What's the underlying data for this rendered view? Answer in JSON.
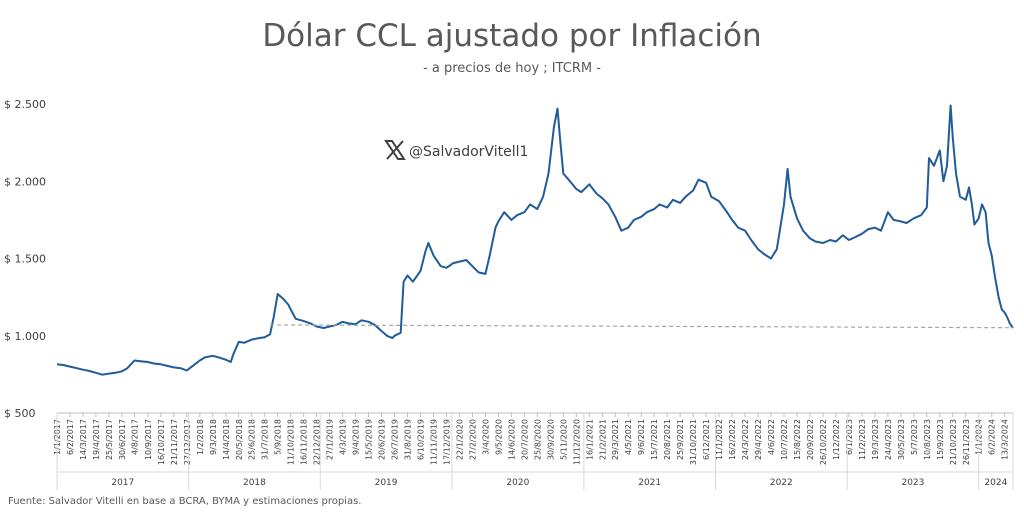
{
  "chart_data": {
    "type": "line",
    "title": "Dólar CCL ajustado por Inflación",
    "subtitle": "- a precios de hoy ; ITCRM -",
    "ylim": [
      500,
      2500
    ],
    "y_ticks": [
      500,
      1000,
      1500,
      2000,
      2500
    ],
    "y_tick_labels": [
      "$ 500",
      "$ 1.000",
      "$ 1.500",
      "$ 2.000",
      "$ 2.500"
    ],
    "grid": false,
    "x_tick_labels": [
      "1/1/2017",
      "6/2/2017",
      "14/3/2017",
      "19/4/2017",
      "25/5/2017",
      "30/6/2017",
      "4/8/2017",
      "10/9/2017",
      "16/10/2017",
      "21/11/2017",
      "27/12/2017",
      "1/2/2018",
      "9/3/2018",
      "14/4/2018",
      "20/5/2018",
      "25/6/2018",
      "31/7/2018",
      "5/9/2018",
      "11/10/2018",
      "16/11/2018",
      "22/12/2018",
      "27/1/2019",
      "4/3/2019",
      "9/4/2019",
      "15/5/2019",
      "20/6/2019",
      "26/7/2019",
      "31/8/2019",
      "6/10/2019",
      "11/11/2019",
      "17/12/2019",
      "22/1/2020",
      "27/2/2020",
      "3/4/2020",
      "9/5/2020",
      "14/6/2020",
      "20/7/2020",
      "25/8/2020",
      "30/9/2020",
      "5/11/2020",
      "11/12/2020",
      "16/1/2021",
      "21/2/2021",
      "29/3/2021",
      "4/5/2021",
      "9/6/2021",
      "15/7/2021",
      "20/8/2021",
      "25/9/2021",
      "31/10/2021",
      "6/12/2021",
      "11/1/2022",
      "16/2/2022",
      "24/3/2022",
      "29/4/2022",
      "4/6/2022",
      "10/7/2022",
      "15/8/2022",
      "20/9/2022",
      "26/10/2022",
      "1/12/2022",
      "6/1/2023",
      "11/2/2023",
      "19/3/2023",
      "24/4/2023",
      "30/5/2023",
      "5/7/2023",
      "10/8/2023",
      "15/9/2023",
      "21/10/2023",
      "26/11/2023",
      "1/1/2024",
      "6/2/2024",
      "13/3/2024"
    ],
    "year_groups": [
      {
        "label": "2017",
        "start": "2017-01-01",
        "end": "2017-12-31"
      },
      {
        "label": "2018",
        "start": "2018-01-01",
        "end": "2018-12-31"
      },
      {
        "label": "2019",
        "start": "2019-01-01",
        "end": "2019-12-31"
      },
      {
        "label": "2020",
        "start": "2020-01-01",
        "end": "2020-12-31"
      },
      {
        "label": "2021",
        "start": "2021-01-01",
        "end": "2021-12-31"
      },
      {
        "label": "2022",
        "start": "2022-01-01",
        "end": "2022-12-31"
      },
      {
        "label": "2023",
        "start": "2023-01-01",
        "end": "2023-12-31"
      },
      {
        "label": "2024",
        "start": "2024-01-01",
        "end": "2024-04-05"
      }
    ],
    "series": [
      {
        "color": "#1f5c99",
        "points": [
          [
            "2017-01-01",
            815
          ],
          [
            "2017-01-20",
            810
          ],
          [
            "2017-02-06",
            800
          ],
          [
            "2017-02-25",
            790
          ],
          [
            "2017-03-14",
            780
          ],
          [
            "2017-04-01",
            772
          ],
          [
            "2017-04-19",
            760
          ],
          [
            "2017-05-07",
            748
          ],
          [
            "2017-05-25",
            755
          ],
          [
            "2017-06-12",
            760
          ],
          [
            "2017-06-30",
            770
          ],
          [
            "2017-07-15",
            790
          ],
          [
            "2017-08-04",
            840
          ],
          [
            "2017-08-20",
            835
          ],
          [
            "2017-09-10",
            830
          ],
          [
            "2017-09-28",
            820
          ],
          [
            "2017-10-16",
            815
          ],
          [
            "2017-11-03",
            805
          ],
          [
            "2017-11-21",
            795
          ],
          [
            "2017-12-10",
            790
          ],
          [
            "2017-12-27",
            775
          ],
          [
            "2018-01-10",
            800
          ],
          [
            "2018-02-01",
            840
          ],
          [
            "2018-02-15",
            860
          ],
          [
            "2018-03-09",
            870
          ],
          [
            "2018-03-25",
            860
          ],
          [
            "2018-04-14",
            845
          ],
          [
            "2018-04-28",
            830
          ],
          [
            "2018-05-05",
            880
          ],
          [
            "2018-05-20",
            960
          ],
          [
            "2018-06-05",
            955
          ],
          [
            "2018-06-25",
            975
          ],
          [
            "2018-07-15",
            985
          ],
          [
            "2018-07-31",
            990
          ],
          [
            "2018-08-15",
            1010
          ],
          [
            "2018-08-25",
            1120
          ],
          [
            "2018-09-05",
            1270
          ],
          [
            "2018-09-20",
            1240
          ],
          [
            "2018-10-05",
            1200
          ],
          [
            "2018-10-11",
            1170
          ],
          [
            "2018-10-25",
            1110
          ],
          [
            "2018-11-16",
            1095
          ],
          [
            "2018-12-05",
            1080
          ],
          [
            "2018-12-22",
            1060
          ],
          [
            "2019-01-10",
            1050
          ],
          [
            "2019-01-27",
            1060
          ],
          [
            "2019-02-15",
            1070
          ],
          [
            "2019-03-04",
            1090
          ],
          [
            "2019-03-20",
            1080
          ],
          [
            "2019-04-09",
            1075
          ],
          [
            "2019-04-25",
            1100
          ],
          [
            "2019-05-15",
            1090
          ],
          [
            "2019-06-01",
            1070
          ],
          [
            "2019-06-20",
            1030
          ],
          [
            "2019-07-05",
            1000
          ],
          [
            "2019-07-20",
            985
          ],
          [
            "2019-07-26",
            1000
          ],
          [
            "2019-08-12",
            1020
          ],
          [
            "2019-08-20",
            1350
          ],
          [
            "2019-08-31",
            1390
          ],
          [
            "2019-09-15",
            1350
          ],
          [
            "2019-10-06",
            1420
          ],
          [
            "2019-10-20",
            1550
          ],
          [
            "2019-10-28",
            1600
          ],
          [
            "2019-11-11",
            1520
          ],
          [
            "2019-12-01",
            1450
          ],
          [
            "2019-12-17",
            1440
          ],
          [
            "2020-01-05",
            1470
          ],
          [
            "2020-01-22",
            1480
          ],
          [
            "2020-02-10",
            1490
          ],
          [
            "2020-02-27",
            1450
          ],
          [
            "2020-03-15",
            1410
          ],
          [
            "2020-04-03",
            1400
          ],
          [
            "2020-04-15",
            1520
          ],
          [
            "2020-05-01",
            1700
          ],
          [
            "2020-05-09",
            1740
          ],
          [
            "2020-05-25",
            1800
          ],
          [
            "2020-06-14",
            1750
          ],
          [
            "2020-06-30",
            1780
          ],
          [
            "2020-07-20",
            1800
          ],
          [
            "2020-08-05",
            1850
          ],
          [
            "2020-08-25",
            1820
          ],
          [
            "2020-09-10",
            1900
          ],
          [
            "2020-09-25",
            2050
          ],
          [
            "2020-09-30",
            2150
          ],
          [
            "2020-10-10",
            2350
          ],
          [
            "2020-10-20",
            2470
          ],
          [
            "2020-10-28",
            2250
          ],
          [
            "2020-11-05",
            2050
          ],
          [
            "2020-11-20",
            2010
          ],
          [
            "2020-12-11",
            1950
          ],
          [
            "2020-12-25",
            1930
          ],
          [
            "2021-01-16",
            1980
          ],
          [
            "2021-02-05",
            1920
          ],
          [
            "2021-02-21",
            1890
          ],
          [
            "2021-03-10",
            1850
          ],
          [
            "2021-03-29",
            1770
          ],
          [
            "2021-04-15",
            1680
          ],
          [
            "2021-05-04",
            1700
          ],
          [
            "2021-05-20",
            1750
          ],
          [
            "2021-06-09",
            1770
          ],
          [
            "2021-06-25",
            1800
          ],
          [
            "2021-07-15",
            1820
          ],
          [
            "2021-07-30",
            1850
          ],
          [
            "2021-08-20",
            1830
          ],
          [
            "2021-09-05",
            1880
          ],
          [
            "2021-09-25",
            1860
          ],
          [
            "2021-10-10",
            1900
          ],
          [
            "2021-10-31",
            1940
          ],
          [
            "2021-11-15",
            2010
          ],
          [
            "2021-12-06",
            1990
          ],
          [
            "2021-12-20",
            1900
          ],
          [
            "2022-01-11",
            1870
          ],
          [
            "2022-01-30",
            1810
          ],
          [
            "2022-02-16",
            1750
          ],
          [
            "2022-03-05",
            1700
          ],
          [
            "2022-03-24",
            1680
          ],
          [
            "2022-04-10",
            1620
          ],
          [
            "2022-04-29",
            1560
          ],
          [
            "2022-05-15",
            1530
          ],
          [
            "2022-06-04",
            1500
          ],
          [
            "2022-06-20",
            1560
          ],
          [
            "2022-07-01",
            1720
          ],
          [
            "2022-07-10",
            1850
          ],
          [
            "2022-07-20",
            2080
          ],
          [
            "2022-07-28",
            1900
          ],
          [
            "2022-08-15",
            1760
          ],
          [
            "2022-09-01",
            1680
          ],
          [
            "2022-09-20",
            1630
          ],
          [
            "2022-10-05",
            1610
          ],
          [
            "2022-10-26",
            1600
          ],
          [
            "2022-11-15",
            1620
          ],
          [
            "2022-12-01",
            1610
          ],
          [
            "2022-12-20",
            1650
          ],
          [
            "2023-01-06",
            1620
          ],
          [
            "2023-01-25",
            1640
          ],
          [
            "2023-02-11",
            1660
          ],
          [
            "2023-03-01",
            1690
          ],
          [
            "2023-03-19",
            1700
          ],
          [
            "2023-04-05",
            1680
          ],
          [
            "2023-04-24",
            1800
          ],
          [
            "2023-05-10",
            1750
          ],
          [
            "2023-05-30",
            1740
          ],
          [
            "2023-06-15",
            1730
          ],
          [
            "2023-07-05",
            1760
          ],
          [
            "2023-07-25",
            1780
          ],
          [
            "2023-08-10",
            1830
          ],
          [
            "2023-08-16",
            2150
          ],
          [
            "2023-08-30",
            2100
          ],
          [
            "2023-09-15",
            2200
          ],
          [
            "2023-09-25",
            2000
          ],
          [
            "2023-10-05",
            2100
          ],
          [
            "2023-10-15",
            2490
          ],
          [
            "2023-10-21",
            2280
          ],
          [
            "2023-10-30",
            2050
          ],
          [
            "2023-11-10",
            1900
          ],
          [
            "2023-11-26",
            1880
          ],
          [
            "2023-12-05",
            1960
          ],
          [
            "2023-12-13",
            1850
          ],
          [
            "2023-12-20",
            1720
          ],
          [
            "2024-01-01",
            1760
          ],
          [
            "2024-01-10",
            1850
          ],
          [
            "2024-01-20",
            1800
          ],
          [
            "2024-01-28",
            1600
          ],
          [
            "2024-02-06",
            1520
          ],
          [
            "2024-02-15",
            1380
          ],
          [
            "2024-02-25",
            1250
          ],
          [
            "2024-03-05",
            1170
          ],
          [
            "2024-03-13",
            1150
          ],
          [
            "2024-03-20",
            1120
          ],
          [
            "2024-03-27",
            1080
          ],
          [
            "2024-04-05",
            1050
          ]
        ]
      },
      {
        "color": "#a6a6a6",
        "dashed": true,
        "points": [
          [
            "2018-08-15",
            1070
          ],
          [
            "2024-04-05",
            1052
          ]
        ]
      }
    ],
    "annotation": "@SalvadorVitell1",
    "source": "Fuente: Salvador Vitelli en base a BCRA, BYMA y estimaciones propias."
  }
}
